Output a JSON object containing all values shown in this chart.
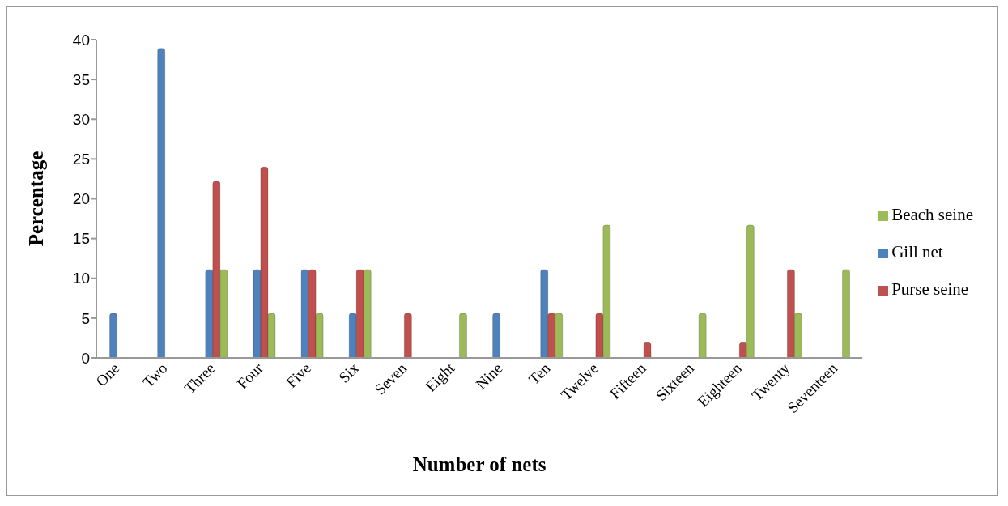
{
  "chart_data": {
    "type": "bar",
    "xlabel": "Number of nets",
    "ylabel": "Percentage",
    "categories": [
      "One",
      "Two",
      "Three",
      "Four",
      "Five",
      "Six",
      "Seven",
      "Eight",
      "Nine",
      "Ten",
      "Twelve",
      "Fifteen",
      "Sixteen",
      "Eighteen",
      "Twenty",
      "Seventeen"
    ],
    "series": [
      {
        "name": "Gill net",
        "color": "#4f81bd",
        "values": [
          5.6,
          38.9,
          11.1,
          11.1,
          11.1,
          5.6,
          0,
          0,
          5.6,
          11.1,
          0,
          0,
          0,
          0,
          0,
          0
        ]
      },
      {
        "name": "Purse seine",
        "color": "#c0504d",
        "values": [
          0,
          0,
          22.2,
          24,
          11.1,
          11.1,
          5.6,
          0,
          0,
          5.6,
          5.6,
          1.9,
          0,
          1.9,
          11.1,
          0
        ]
      },
      {
        "name": "Beach seine",
        "color": "#9bbb59",
        "values": [
          0,
          0,
          11.1,
          5.6,
          5.6,
          11.1,
          0,
          5.6,
          0,
          5.6,
          16.7,
          0,
          5.6,
          16.7,
          5.6,
          11.1
        ]
      }
    ],
    "ylim": [
      0,
      40
    ],
    "yticks": [
      0,
      5,
      10,
      15,
      20,
      25,
      30,
      35,
      40
    ],
    "grid": false,
    "legend": "right"
  }
}
